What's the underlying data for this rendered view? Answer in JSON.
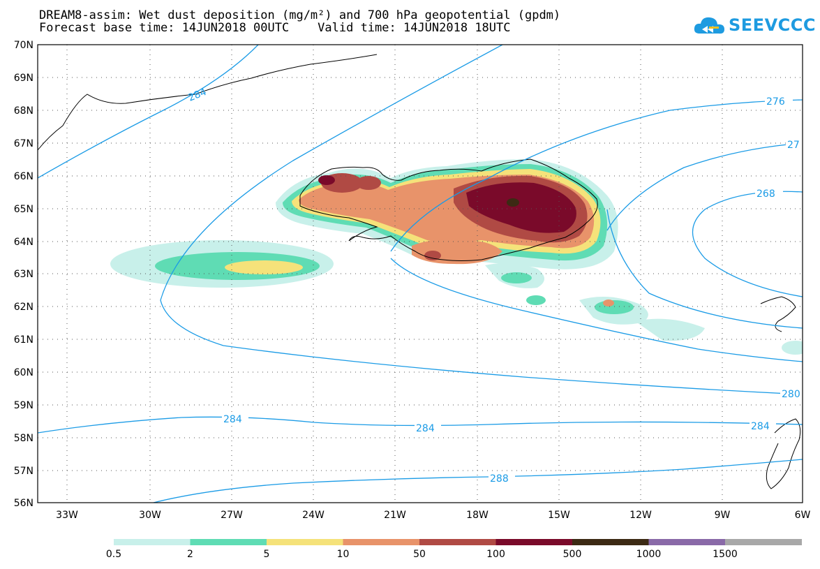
{
  "title": {
    "line1": "DREAM8-assim: Wet dust deposition (mg/m²) and 700 hPa geopotential (gpdm)",
    "line2": "Forecast base time: 14JUN2018 00UTC    Valid time: 14JUN2018 18UTC"
  },
  "logo": {
    "text": "SEEVCCC",
    "icon": "cloud-icon",
    "color": "#1e9be0"
  },
  "axes": {
    "lat_labels": [
      "70N",
      "69N",
      "68N",
      "67N",
      "66N",
      "65N",
      "64N",
      "63N",
      "62N",
      "61N",
      "60N",
      "59N",
      "58N",
      "57N",
      "56N"
    ],
    "lon_labels": [
      "33W",
      "30W",
      "27W",
      "24W",
      "21W",
      "18W",
      "15W",
      "12W",
      "9W",
      "6W"
    ]
  },
  "contours": {
    "color": "#1a9be6",
    "labels": [
      "284",
      "276",
      "27",
      "268",
      "280",
      "284",
      "284",
      "284",
      "288"
    ]
  },
  "colorbar": {
    "labels": [
      "0.5",
      "2",
      "5",
      "10",
      "50",
      "100",
      "500",
      "1000",
      "1500"
    ],
    "colors": [
      "#c8f0ea",
      "#5fdcb4",
      "#f5e27a",
      "#e8936a",
      "#b04a44",
      "#7a0a2a",
      "#3c2a14",
      "#8a6aa8",
      "#a8a8a8"
    ]
  }
}
